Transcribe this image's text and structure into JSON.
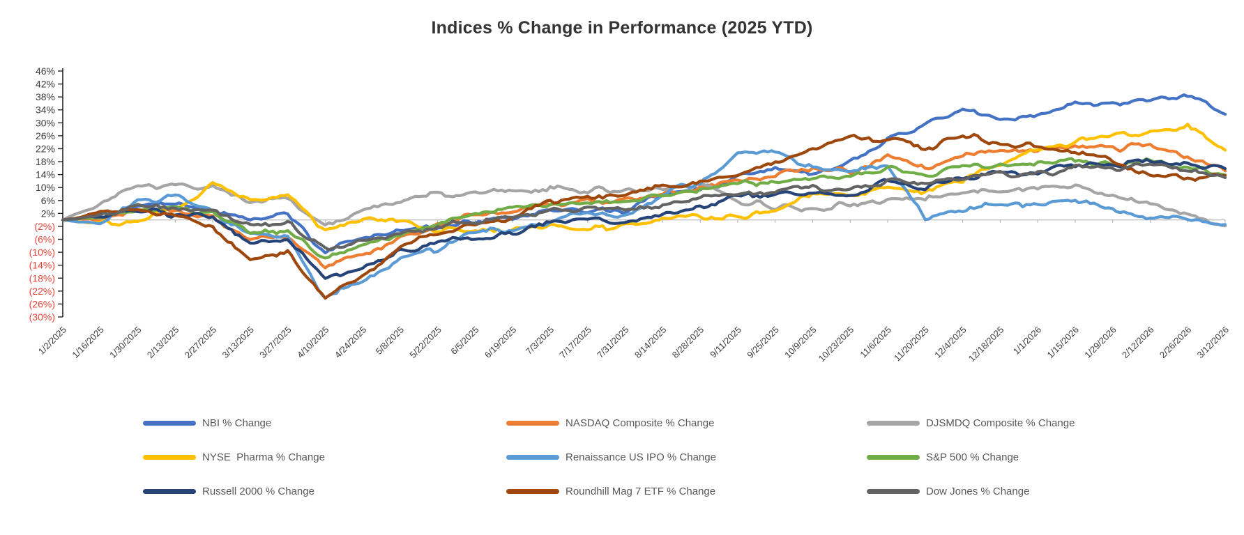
{
  "chart_data": {
    "type": "line",
    "title": "Indices % Change in Performance (2025 YTD)",
    "x_categories": [
      "1/2/2025",
      "1/16/2025",
      "1/30/2025",
      "2/13/2025",
      "2/27/2025",
      "3/13/2025",
      "3/27/2025",
      "4/10/2025",
      "4/24/2025",
      "5/8/2025",
      "5/22/2025",
      "6/5/2025",
      "6/19/2025",
      "7/3/2025",
      "7/17/2025",
      "7/31/2025",
      "8/14/2025",
      "8/28/2025",
      "9/11/2025",
      "9/25/2025",
      "10/9/2025",
      "10/23/2025",
      "11/6/2025",
      "11/20/2025",
      "12/4/2025",
      "12/18/2025",
      "1/1/2026",
      "1/15/2026",
      "1/29/2026",
      "2/12/2026",
      "2/26/2026",
      "3/12/2026"
    ],
    "y_axis": {
      "min": -30,
      "max": 46,
      "step": 4,
      "tick_labels": [
        "46%",
        "42%",
        "38%",
        "34%",
        "30%",
        "26%",
        "22%",
        "18%",
        "14%",
        "10%",
        "6%",
        "2%",
        "(2%)",
        "(6%)",
        "(10%)",
        "(14%)",
        "(18%)",
        "(22%)",
        "(26%)",
        "(30%)"
      ],
      "positive_label_color": "#3a3a3a",
      "negative_label_color": "#e84338",
      "axis_line_color": "#262626",
      "zero_line_color": "#c3c3c3"
    },
    "grid": "zero-line-only",
    "legend_position": "bottom",
    "series": [
      {
        "name": "NBI % Change",
        "color": "#4472C4",
        "values": [
          0,
          1,
          4,
          5,
          3,
          0,
          2,
          -10,
          -5,
          -3,
          -2,
          0,
          1,
          3,
          3,
          3,
          8,
          9,
          13,
          16,
          15,
          18,
          25,
          30,
          34,
          31,
          32,
          36,
          36,
          37,
          39,
          33
        ]
      },
      {
        "name": "NASDAQ Composite % Change",
        "color": "#ED7D31",
        "values": [
          0,
          0,
          2,
          3,
          1,
          -6,
          -5,
          -15,
          -11,
          -6,
          -2,
          2,
          3,
          5,
          6,
          6,
          8,
          10,
          12,
          14,
          16,
          15,
          19,
          16,
          20,
          21,
          21,
          22,
          22,
          23,
          19,
          16
        ]
      },
      {
        "name": "DJSMDQ Composite % Change",
        "color": "#A5A5A5",
        "values": [
          0,
          5,
          10,
          11,
          10,
          6,
          7,
          -2,
          3,
          6,
          8,
          8,
          9,
          10,
          9,
          9,
          10,
          11,
          6,
          4,
          3,
          5,
          6,
          7,
          8,
          9,
          10,
          10,
          8,
          5,
          2,
          -2
        ]
      },
      {
        "name": "NYSE  Pharma % Change",
        "color": "#FFC000",
        "values": [
          0,
          -1,
          0,
          4,
          11,
          6,
          7,
          -3,
          1,
          -1,
          -3,
          -3,
          -3,
          -2,
          -3,
          -2,
          0,
          1,
          1,
          2,
          8,
          8,
          10,
          9,
          12,
          17,
          22,
          24,
          26,
          27,
          29,
          22
        ]
      },
      {
        "name": "Renaissance US IPO % Change",
        "color": "#5B9BD5",
        "values": [
          0,
          -1,
          6,
          7,
          2,
          -5,
          -4,
          -24,
          -19,
          -12,
          -9,
          -4,
          -3,
          0,
          2,
          1,
          8,
          12,
          20,
          21,
          16,
          15,
          17,
          0,
          3,
          5,
          5,
          6,
          4,
          1,
          0,
          -2
        ]
      },
      {
        "name": "S&P 500 % Change",
        "color": "#70AD47",
        "values": [
          0,
          1,
          3,
          4,
          2,
          -4,
          -3,
          -12,
          -8,
          -4,
          -1,
          2,
          3,
          5,
          6,
          6,
          8,
          9,
          11,
          12,
          13,
          14,
          16,
          14,
          16,
          17,
          17,
          18,
          17,
          18,
          16,
          14
        ]
      },
      {
        "name": "Russell 2000 % Change",
        "color": "#264478",
        "values": [
          0,
          1,
          3,
          2,
          0,
          -7,
          -6,
          -19,
          -15,
          -10,
          -7,
          -5,
          -4,
          -1,
          0,
          -1,
          2,
          4,
          7,
          8,
          9,
          8,
          12,
          10,
          13,
          14,
          15,
          17,
          17,
          18,
          17,
          16
        ]
      },
      {
        "name": "Roundhill Mag 7 ETF % Change",
        "color": "#9E480E",
        "values": [
          0,
          2,
          3,
          2,
          -2,
          -13,
          -10,
          -24,
          -17,
          -9,
          -4,
          -1,
          1,
          5,
          7,
          8,
          10,
          11,
          14,
          18,
          21,
          26,
          25,
          22,
          26,
          24,
          23,
          21,
          18,
          14,
          13,
          14
        ]
      },
      {
        "name": "Dow Jones % Change",
        "color": "#636363",
        "values": [
          0,
          1,
          4,
          4,
          3,
          -2,
          -1,
          -9,
          -7,
          -4,
          -2,
          0,
          1,
          3,
          3,
          3,
          5,
          7,
          8,
          9,
          10,
          9,
          12,
          11,
          13,
          14,
          14,
          16,
          16,
          17,
          15,
          13
        ]
      }
    ]
  }
}
